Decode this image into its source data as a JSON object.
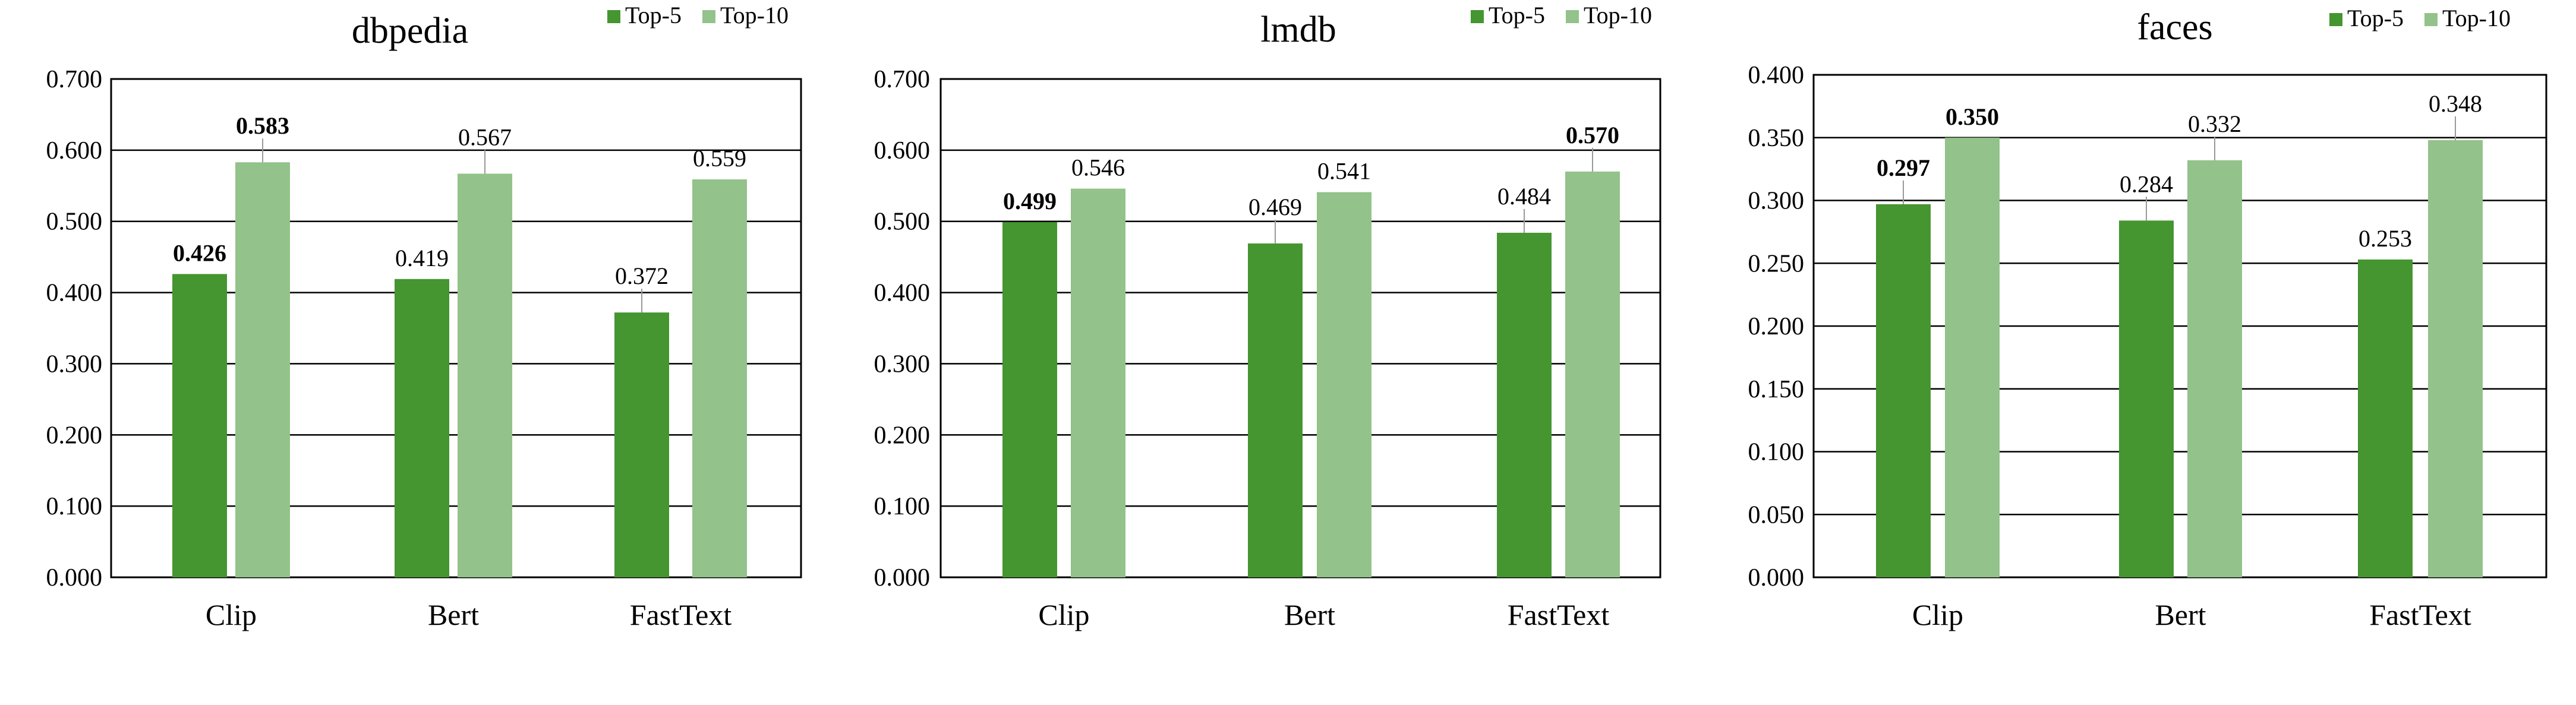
{
  "chart_data": [
    {
      "type": "bar",
      "title": "dbpedia",
      "categories": [
        "Clip",
        "Bert",
        "FastText"
      ],
      "series": [
        {
          "name": "Top-5",
          "values": [
            0.426,
            0.419,
            0.372
          ],
          "labels": [
            "0.426",
            "0.419",
            "0.372"
          ],
          "bold": [
            true,
            false,
            false
          ]
        },
        {
          "name": "Top-10",
          "values": [
            0.583,
            0.567,
            0.559
          ],
          "labels": [
            "0.583",
            "0.567",
            "0.559"
          ],
          "bold": [
            true,
            false,
            false
          ]
        }
      ],
      "yticks": [
        "0.000",
        "0.100",
        "0.200",
        "0.300",
        "0.400",
        "0.500",
        "0.600",
        "0.700"
      ],
      "ylim": [
        0,
        0.7
      ],
      "legend": "top-right",
      "grid": true
    },
    {
      "type": "bar",
      "title": "lmdb",
      "categories": [
        "Clip",
        "Bert",
        "FastText"
      ],
      "series": [
        {
          "name": "Top-5",
          "values": [
            0.499,
            0.469,
            0.484
          ],
          "labels": [
            "0.499",
            "0.469",
            "0.484"
          ],
          "bold": [
            true,
            false,
            false
          ]
        },
        {
          "name": "Top-10",
          "values": [
            0.546,
            0.541,
            0.57
          ],
          "labels": [
            "0.546",
            "0.541",
            "0.570"
          ],
          "bold": [
            false,
            false,
            true
          ]
        }
      ],
      "yticks": [
        "0.000",
        "0.100",
        "0.200",
        "0.300",
        "0.400",
        "0.500",
        "0.600",
        "0.700"
      ],
      "ylim": [
        0,
        0.7
      ],
      "legend": "top-right",
      "grid": true
    },
    {
      "type": "bar",
      "title": "faces",
      "categories": [
        "Clip",
        "Bert",
        "FastText"
      ],
      "series": [
        {
          "name": "Top-5",
          "values": [
            0.297,
            0.284,
            0.253
          ],
          "labels": [
            "0.297",
            "0.284",
            "0.253"
          ],
          "bold": [
            true,
            false,
            false
          ]
        },
        {
          "name": "Top-10",
          "values": [
            0.35,
            0.332,
            0.348
          ],
          "labels": [
            "0.350",
            "0.332",
            "0.348"
          ],
          "bold": [
            true,
            false,
            false
          ]
        }
      ],
      "yticks": [
        "0.000",
        "0.050",
        "0.100",
        "0.150",
        "0.200",
        "0.250",
        "0.300",
        "0.350",
        "0.400"
      ],
      "ylim": [
        0,
        0.4
      ],
      "legend": "top-right",
      "grid": true
    }
  ],
  "colors": {
    "top5": "#459530",
    "top10": "#93c28a",
    "grid": "#000000",
    "leader": "#999999"
  }
}
